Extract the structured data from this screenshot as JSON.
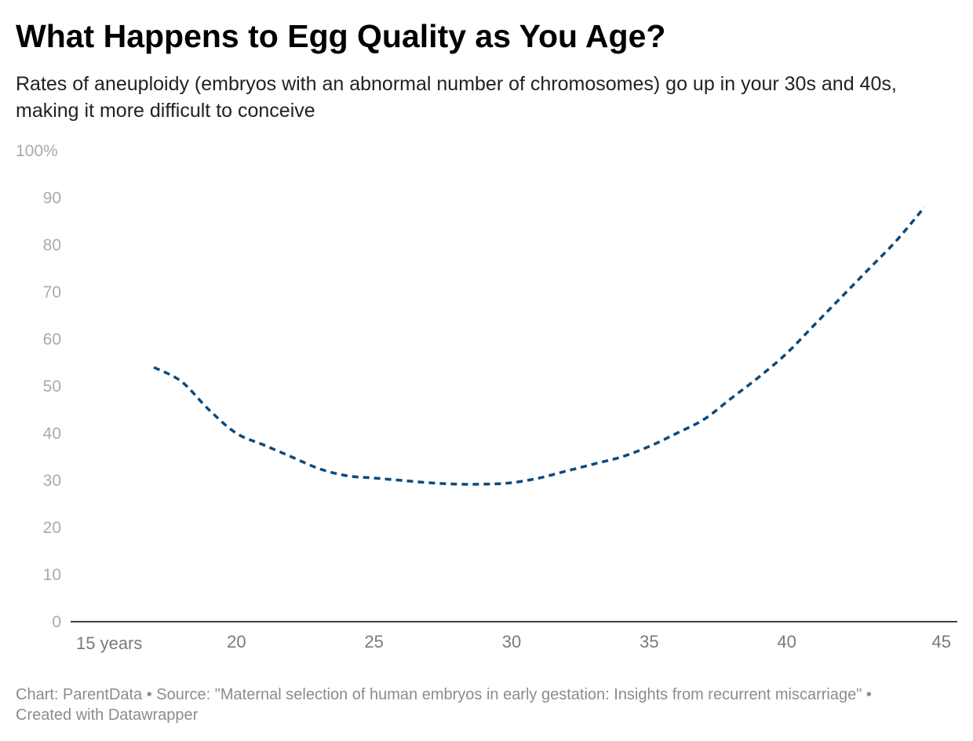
{
  "header": {
    "title": "What Happens to Egg Quality as You Age?",
    "subtitle": "Rates of aneuploidy (embryos with an abnormal number of chromosomes) go up in your 30s and 40s, making it more difficult to conceive"
  },
  "footer": {
    "text": "Chart: ParentData • Source: \"Maternal selection of human embryos in early gestation: Insights from recurrent miscarriage\" • Created with Datawrapper"
  },
  "colors": {
    "line": "#0b4a80",
    "axis": "#000000",
    "ytick": "#aaaaaa",
    "xtick": "#7a7a7a"
  },
  "chart_data": {
    "type": "line",
    "line_style": "dashed",
    "x": [
      17,
      18,
      19,
      20,
      21,
      22,
      23,
      24,
      25,
      26,
      27,
      28,
      29,
      30,
      31,
      32,
      33,
      34,
      35,
      36,
      37,
      38,
      39,
      40,
      41,
      42,
      43,
      44,
      45
    ],
    "series": [
      {
        "values": [
          54,
          51,
          45,
          40,
          37.5,
          35,
          32.5,
          31,
          30.5,
          30,
          29.5,
          29.2,
          29.2,
          29.5,
          30.5,
          32,
          33.5,
          35,
          37.2,
          40,
          43,
          47.5,
          52,
          57,
          63,
          69,
          75,
          81,
          88
        ]
      }
    ],
    "xlim": [
      14,
      45.5
    ],
    "ylim": [
      0,
      100
    ],
    "x_ticks": [
      15,
      20,
      25,
      30,
      35,
      40,
      45
    ],
    "x_tick_labels": [
      "15 years",
      "20",
      "25",
      "30",
      "35",
      "40",
      "45"
    ],
    "y_ticks": [
      0,
      10,
      20,
      30,
      40,
      50,
      60,
      70,
      80,
      90,
      100
    ],
    "y_tick_labels": [
      "0",
      "10",
      "20",
      "30",
      "40",
      "50",
      "60",
      "70",
      "80",
      "90",
      "100%"
    ],
    "grid": false,
    "legend": "none"
  }
}
